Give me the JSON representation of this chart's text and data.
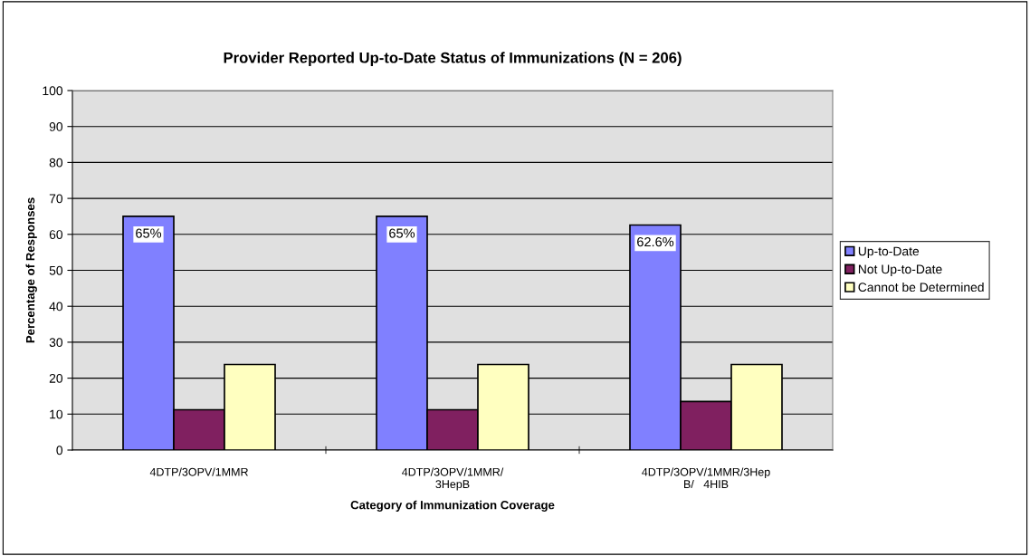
{
  "chart_data": {
    "type": "bar",
    "title": "Provider Reported Up-to-Date Status of Immunizations (N = 206)",
    "xlabel": "Category of Immunization Coverage",
    "ylabel": "Percentage of Responses",
    "categories": [
      "4DTP/3OPV/1MMR",
      "4DTP/3OPV/1MMR/\n3HepB",
      "4DTP/3OPV/1MMR/3Hep\nB/   4HIB"
    ],
    "series": [
      {
        "name": "Up-to-Date",
        "color": "#8080ff",
        "values": [
          65,
          65,
          62.6
        ],
        "value_labels": [
          "65%",
          "65%",
          "62.6%"
        ]
      },
      {
        "name": "Not Up-to-Date",
        "color": "#802060",
        "values": [
          11.2,
          11.2,
          13.5
        ]
      },
      {
        "name": "Cannot be Determined",
        "color": "#ffffc0",
        "values": [
          23.8,
          23.8,
          23.8
        ]
      }
    ],
    "ylim": [
      0,
      100
    ],
    "yticks": [
      0,
      10,
      20,
      30,
      40,
      50,
      60,
      70,
      80,
      90,
      100
    ],
    "grid": "y",
    "legend": "right"
  }
}
